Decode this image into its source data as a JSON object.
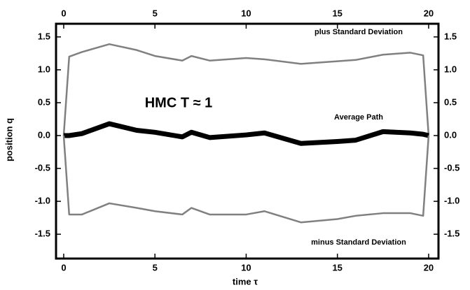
{
  "chart_data": {
    "type": "line",
    "x_label": "time  τ",
    "y_label": "position  q",
    "annotations": [
      "plus Standard Deviation",
      "HMC  T ≈ 1",
      "Average Path",
      "minus Standard Deviation"
    ],
    "x": [
      0,
      0.3,
      1,
      2.5,
      4,
      5,
      6.5,
      7,
      8,
      10,
      11,
      13,
      15,
      16,
      17.5,
      19,
      19.7,
      20
    ],
    "series": [
      {
        "color": "#808080",
        "values": [
          0,
          1.2,
          1.27,
          1.39,
          1.3,
          1.21,
          1.14,
          1.21,
          1.14,
          1.18,
          1.16,
          1.09,
          1.13,
          1.15,
          1.23,
          1.26,
          1.22,
          0
        ]
      },
      {
        "color": "#000000",
        "values": [
          0,
          0,
          0.03,
          0.18,
          0.08,
          0.05,
          -0.02,
          0.05,
          -0.03,
          0.01,
          0.04,
          -0.12,
          -0.09,
          -0.07,
          0.06,
          0.04,
          0.02,
          0
        ]
      },
      {
        "color": "#808080",
        "values": [
          0,
          -1.2,
          -1.2,
          -1.03,
          -1.1,
          -1.15,
          -1.2,
          -1.1,
          -1.2,
          -1.2,
          -1.15,
          -1.32,
          -1.27,
          -1.22,
          -1.18,
          -1.18,
          -1.22,
          0
        ]
      }
    ],
    "xlim": [
      -0.42,
      20.54
    ],
    "ylim": [
      -1.87,
      1.7
    ],
    "xticks": [
      0,
      5,
      10,
      15,
      20
    ],
    "yticks": [
      1.5,
      {
        "value": 1,
        "label": "1.0"
      },
      0.5,
      {
        "value": 0,
        "label": "0.0"
      },
      -0.5,
      {
        "value": -1,
        "label": "-1.0"
      },
      -1.5
    ]
  }
}
